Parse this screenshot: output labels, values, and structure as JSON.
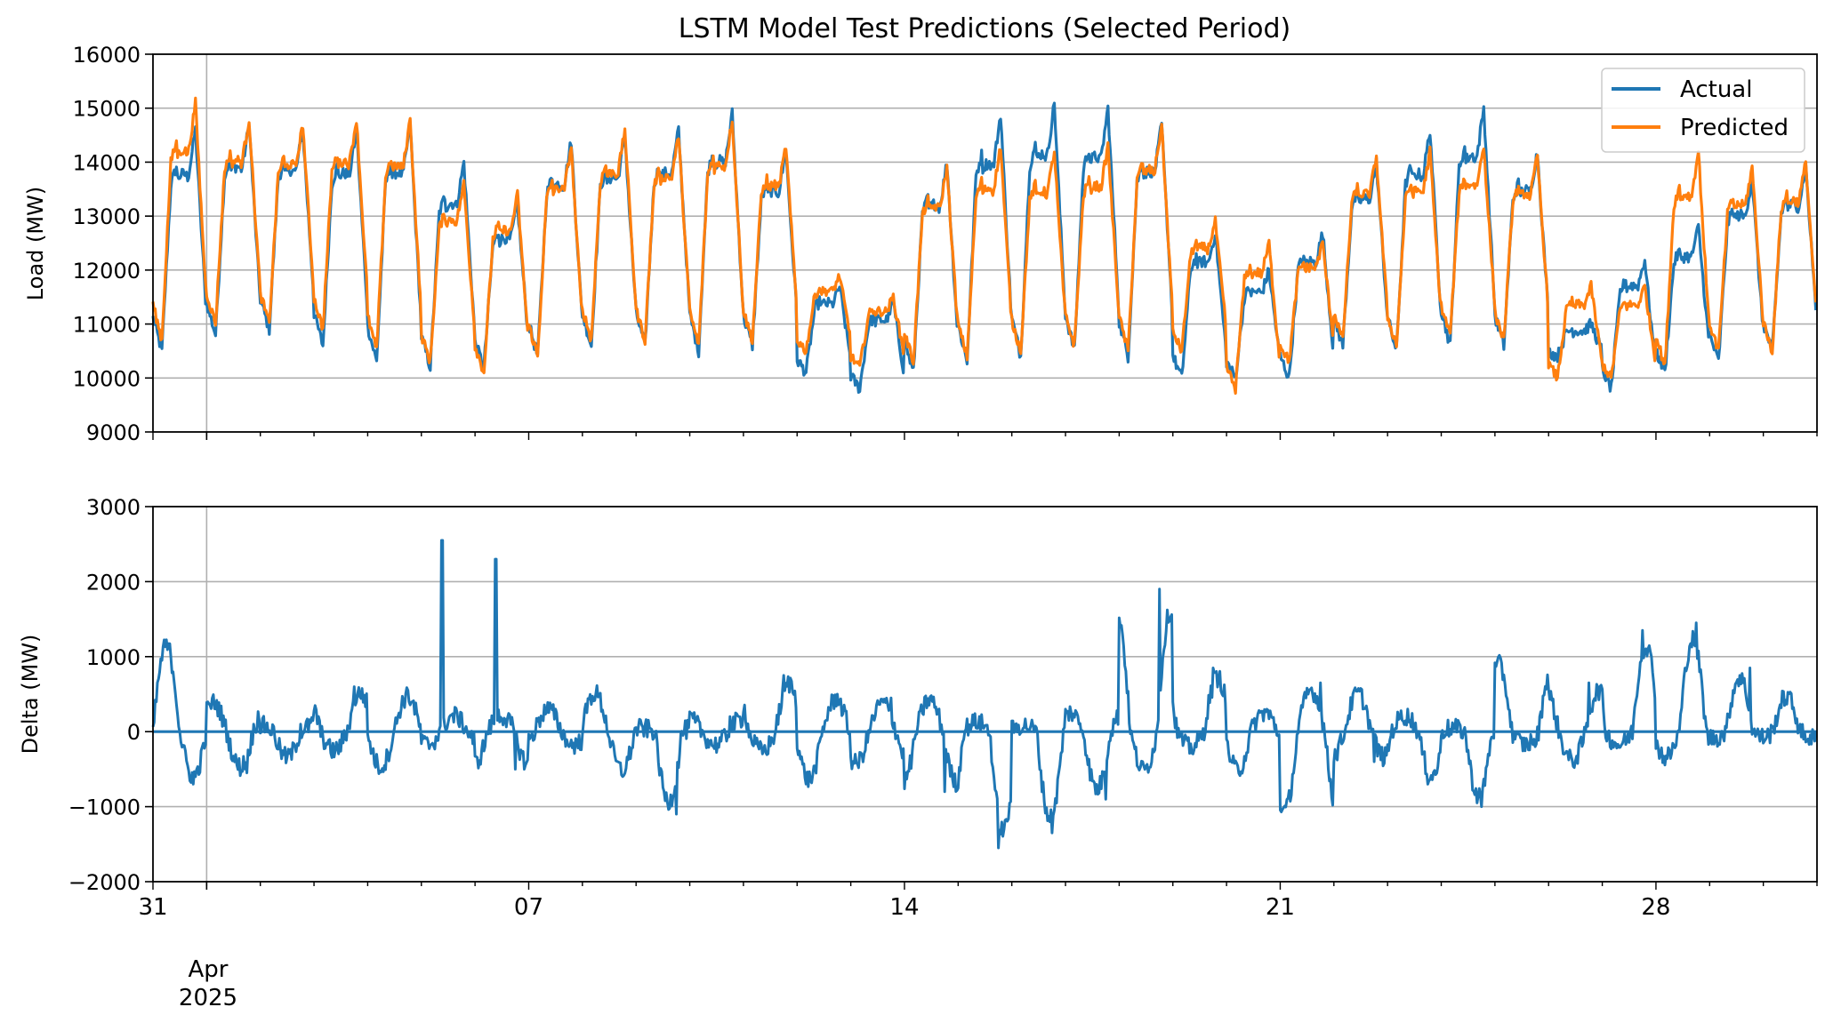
{
  "chart_data": [
    {
      "type": "line",
      "title": "LSTM Model Test Predictions (Selected Period)",
      "ylabel": "Load (MW)",
      "ylim": [
        9000,
        16000
      ],
      "yticks": [
        9000,
        10000,
        11000,
        12000,
        13000,
        14000,
        15000,
        16000
      ],
      "xlim": [
        "2025-03-31",
        "2025-05-01"
      ],
      "grid": true,
      "legend_position": "top-right",
      "colors": {
        "actual": "#1f77b4",
        "predicted": "#ff7f0e"
      },
      "series": [
        {
          "name": "Actual",
          "x": [
            "2025-03-31",
            "2025-04-01",
            "2025-04-02",
            "2025-04-03",
            "2025-04-04",
            "2025-04-05",
            "2025-04-06",
            "2025-04-07",
            "2025-04-08",
            "2025-04-09",
            "2025-04-10",
            "2025-04-11",
            "2025-04-12",
            "2025-04-13",
            "2025-04-14",
            "2025-04-15",
            "2025-04-16",
            "2025-04-17",
            "2025-04-18",
            "2025-04-19",
            "2025-04-20",
            "2025-04-21",
            "2025-04-22",
            "2025-04-23",
            "2025-04-24",
            "2025-04-25",
            "2025-04-26",
            "2025-04-27",
            "2025-04-28",
            "2025-04-29",
            "2025-04-30"
          ],
          "daily_min": [
            10500,
            10800,
            10900,
            10600,
            10300,
            10200,
            10200,
            10400,
            10600,
            10600,
            10500,
            10600,
            10100,
            9800,
            10100,
            10300,
            10400,
            10500,
            10400,
            10000,
            10000,
            10000,
            10600,
            10500,
            10600,
            10600,
            10400,
            9800,
            10100,
            10300,
            10500
          ],
          "daily_peak": [
            14600,
            14700,
            14600,
            14600,
            14700,
            14000,
            13200,
            14400,
            14500,
            14600,
            14900,
            14200,
            11700,
            11400,
            14000,
            14900,
            15100,
            15000,
            14700,
            12700,
            12000,
            12700,
            14000,
            14600,
            15000,
            14200,
            11000,
            12200,
            12800,
            13700,
            13900
          ]
        },
        {
          "name": "Predicted",
          "x": [
            "2025-03-31",
            "2025-04-01",
            "2025-04-02",
            "2025-04-03",
            "2025-04-04",
            "2025-04-05",
            "2025-04-06",
            "2025-04-07",
            "2025-04-08",
            "2025-04-09",
            "2025-04-10",
            "2025-04-11",
            "2025-04-12",
            "2025-04-13",
            "2025-04-14",
            "2025-04-15",
            "2025-04-16",
            "2025-04-17",
            "2025-04-18",
            "2025-04-19",
            "2025-04-20",
            "2025-04-21",
            "2025-04-22",
            "2025-04-23",
            "2025-04-24",
            "2025-04-25",
            "2025-04-26",
            "2025-04-27",
            "2025-04-28",
            "2025-04-29",
            "2025-04-30"
          ],
          "daily_min": [
            10700,
            11000,
            11000,
            10900,
            10500,
            10300,
            10100,
            10400,
            10700,
            10700,
            10600,
            10700,
            10500,
            10200,
            10300,
            10400,
            10500,
            10600,
            10500,
            10500,
            9800,
            10300,
            10700,
            10600,
            10800,
            10700,
            10000,
            10000,
            10200,
            10500,
            10500
          ],
          "daily_peak": [
            15100,
            14800,
            14700,
            14800,
            14800,
            13600,
            13400,
            14300,
            14600,
            14500,
            14800,
            14300,
            11900,
            11500,
            13900,
            14300,
            14200,
            14300,
            14700,
            12900,
            12500,
            12500,
            14100,
            14200,
            14300,
            14100,
            11700,
            11700,
            14200,
            13900,
            14000
          ]
        }
      ]
    },
    {
      "type": "line",
      "title": "",
      "ylabel": "Delta (MW)",
      "ylim": [
        -2000,
        3000
      ],
      "yticks": [
        -2000,
        -1000,
        0,
        1000,
        2000,
        3000
      ],
      "xlim": [
        "2025-03-31",
        "2025-05-01"
      ],
      "xticks_major": [
        "31",
        "07",
        "14",
        "21",
        "28"
      ],
      "xtick_secondary": {
        "month": "Apr",
        "year": "2025"
      },
      "grid": true,
      "colors": {
        "delta": "#1f77b4",
        "zero": "#1f77b4"
      },
      "series": [
        {
          "name": "",
          "x": [
            "2025-03-31",
            "2025-04-01",
            "2025-04-02",
            "2025-04-03",
            "2025-04-04",
            "2025-04-05",
            "2025-04-06",
            "2025-04-07",
            "2025-04-08",
            "2025-04-09",
            "2025-04-10",
            "2025-04-11",
            "2025-04-12",
            "2025-04-13",
            "2025-04-14",
            "2025-04-15",
            "2025-04-16",
            "2025-04-17",
            "2025-04-18",
            "2025-04-19",
            "2025-04-20",
            "2025-04-21",
            "2025-04-22",
            "2025-04-23",
            "2025-04-24",
            "2025-04-25",
            "2025-04-26",
            "2025-04-27",
            "2025-04-28",
            "2025-04-29",
            "2025-04-30"
          ],
          "daily_max": [
            1350,
            450,
            100,
            600,
            550,
            2550,
            2300,
            350,
            600,
            50,
            200,
            750,
            500,
            450,
            500,
            150,
            100,
            300,
            1900,
            850,
            300,
            650,
            600,
            250,
            50,
            1050,
            650,
            1350,
            1450,
            850,
            550
          ],
          "daily_min": [
            -700,
            -550,
            -400,
            -300,
            -550,
            -200,
            -500,
            -200,
            -600,
            -1100,
            -200,
            -300,
            -750,
            -500,
            -800,
            -1550,
            -1350,
            -900,
            -600,
            -250,
            -600,
            -1250,
            -400,
            -700,
            -1000,
            -200,
            -450,
            -200,
            -400,
            -100,
            -100
          ]
        }
      ]
    }
  ]
}
